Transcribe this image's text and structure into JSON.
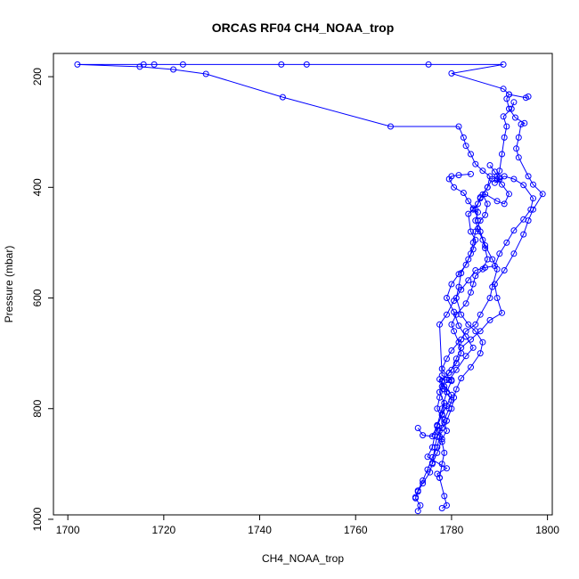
{
  "chart_data": {
    "type": "line",
    "title": "ORCAS RF04 CH4_NOAA_trop",
    "xlabel": "CH4_NOAA_trop",
    "ylabel": "Pressure (mbar)",
    "xlim": [
      1697,
      1801
    ],
    "ylim": [
      158,
      992
    ],
    "y_reversed": true,
    "grid": false,
    "x_ticks": [
      {
        "value": 1700,
        "label": "1700"
      },
      {
        "value": 1720,
        "label": "1720"
      },
      {
        "value": 1740,
        "label": "1740"
      },
      {
        "value": 1760,
        "label": "1760"
      },
      {
        "value": 1780,
        "label": "1780"
      },
      {
        "value": 1800,
        "label": "1800"
      }
    ],
    "y_ticks": [
      {
        "value": 200,
        "label": "200"
      },
      {
        "value": 400,
        "label": "400"
      },
      {
        "value": 600,
        "label": "600"
      },
      {
        "value": 800,
        "label": "800"
      },
      {
        "value": 1000,
        "label": "1000"
      }
    ],
    "series": [
      {
        "color": "#0000ff",
        "marker": "open-circle",
        "points": [
          [
            1778.0,
            980
          ],
          [
            1779.0,
            975
          ],
          [
            1778.5,
            958
          ],
          [
            1777.5,
            925
          ],
          [
            1777.0,
            918
          ],
          [
            1779.0,
            908
          ],
          [
            1775.0,
            887
          ],
          [
            1776.0,
            870
          ],
          [
            1776.5,
            848
          ],
          [
            1777.0,
            830
          ],
          [
            1778.0,
            800
          ],
          [
            1779.0,
            770
          ],
          [
            1780.0,
            750
          ],
          [
            1778.0,
            728
          ],
          [
            1779.0,
            710
          ],
          [
            1780.0,
            695
          ],
          [
            1782.0,
            675
          ],
          [
            1783.0,
            660
          ],
          [
            1785.0,
            648
          ],
          [
            1786.0,
            630
          ],
          [
            1788.0,
            600
          ],
          [
            1788.5,
            580
          ],
          [
            1789.5,
            548
          ],
          [
            1788.5,
            530
          ],
          [
            1787.0,
            505
          ],
          [
            1786.0,
            480
          ],
          [
            1785.5,
            460
          ],
          [
            1785.0,
            440
          ],
          [
            1786.0,
            420
          ],
          [
            1787.5,
            400
          ],
          [
            1788.0,
            380
          ],
          [
            1786.5,
            370
          ],
          [
            1785.0,
            358
          ],
          [
            1784.0,
            340
          ],
          [
            1783.0,
            325
          ],
          [
            1782.5,
            310
          ],
          [
            1781.5,
            290
          ],
          [
            1767.3,
            290
          ],
          [
            1744.8,
            237
          ],
          [
            1728.8,
            195
          ],
          [
            1722.0,
            187
          ],
          [
            1715.0,
            182
          ],
          [
            1702.0,
            178
          ],
          [
            1715.8,
            178
          ],
          [
            1718.0,
            178
          ],
          [
            1724.0,
            178
          ],
          [
            1744.5,
            178
          ],
          [
            1749.8,
            178
          ],
          [
            1775.2,
            178
          ],
          [
            1790.8,
            178
          ],
          [
            1780.0,
            194
          ],
          [
            1790.8,
            222
          ],
          [
            1792.0,
            232
          ],
          [
            1795.5,
            238
          ],
          [
            1796.0,
            236
          ]
        ]
      },
      {
        "color": "#0000ff",
        "marker": "open-circle",
        "points": [
          [
            1773.0,
            985
          ],
          [
            1773.5,
            975
          ],
          [
            1772.5,
            962
          ],
          [
            1773.0,
            948
          ],
          [
            1774.0,
            930
          ],
          [
            1775.0,
            910
          ],
          [
            1776.0,
            888
          ],
          [
            1777.0,
            870
          ],
          [
            1777.5,
            850
          ],
          [
            1777.0,
            832
          ],
          [
            1778.0,
            810
          ],
          [
            1778.5,
            790
          ],
          [
            1777.5,
            770
          ],
          [
            1778.0,
            750
          ],
          [
            1780.0,
            730
          ],
          [
            1781.0,
            710
          ],
          [
            1782.0,
            690
          ],
          [
            1784.0,
            675
          ],
          [
            1786.0,
            660
          ],
          [
            1788.0,
            640
          ],
          [
            1790.5,
            627
          ],
          [
            1789.5,
            600
          ],
          [
            1789.0,
            575
          ],
          [
            1791.0,
            550
          ],
          [
            1793.0,
            520
          ],
          [
            1795.0,
            485
          ],
          [
            1796.0,
            460
          ],
          [
            1797.0,
            440
          ],
          [
            1799.0,
            412
          ],
          [
            1797.0,
            395
          ],
          [
            1796.0,
            380
          ],
          [
            1794.0,
            346
          ],
          [
            1793.5,
            330
          ],
          [
            1794.0,
            310
          ],
          [
            1794.5,
            286
          ],
          [
            1795.2,
            284
          ],
          [
            1793.3,
            274
          ],
          [
            1792.0,
            258
          ],
          [
            1791.5,
            240
          ],
          [
            1792.0,
            232
          ]
        ]
      },
      {
        "color": "#0000ff",
        "marker": "open-circle",
        "points": [
          [
            1772.5,
            960
          ],
          [
            1773.0,
            950
          ],
          [
            1774.0,
            935
          ],
          [
            1775.5,
            915
          ],
          [
            1776.0,
            898
          ],
          [
            1777.0,
            880
          ],
          [
            1778.0,
            855
          ],
          [
            1779.0,
            840
          ],
          [
            1778.5,
            825
          ],
          [
            1777.0,
            800
          ],
          [
            1777.5,
            780
          ],
          [
            1778.0,
            760
          ],
          [
            1779.5,
            748
          ],
          [
            1781.0,
            730
          ],
          [
            1783.0,
            705
          ],
          [
            1784.5,
            690
          ],
          [
            1783.0,
            670
          ],
          [
            1781.5,
            650
          ],
          [
            1780.5,
            625
          ],
          [
            1779.0,
            600
          ],
          [
            1780.0,
            575
          ],
          [
            1781.5,
            557
          ],
          [
            1783.0,
            540
          ],
          [
            1784.0,
            520
          ],
          [
            1784.5,
            500
          ],
          [
            1785.0,
            480
          ],
          [
            1786.0,
            460
          ],
          [
            1787.0,
            450
          ],
          [
            1787.5,
            430
          ],
          [
            1786.5,
            413
          ],
          [
            1787.5,
            400
          ],
          [
            1788.5,
            385
          ],
          [
            1789.5,
            380
          ],
          [
            1790.0,
            370
          ],
          [
            1790.5,
            340
          ],
          [
            1791.0,
            310
          ],
          [
            1791.5,
            290
          ],
          [
            1790.8,
            272
          ],
          [
            1792.5,
            258
          ],
          [
            1793.0,
            246
          ]
        ]
      },
      {
        "color": "#0000ff",
        "marker": "open-circle",
        "points": [
          [
            1773.0,
            835
          ],
          [
            1774.0,
            848
          ],
          [
            1776.0,
            850
          ],
          [
            1777.0,
            830
          ],
          [
            1778.0,
            812
          ],
          [
            1779.0,
            795
          ],
          [
            1780.0,
            775
          ],
          [
            1778.5,
            760
          ],
          [
            1777.5,
            747
          ],
          [
            1779.0,
            748
          ],
          [
            1780.0,
            748
          ],
          [
            1778.0,
            740
          ],
          [
            1777.5,
            648
          ],
          [
            1779.0,
            630
          ],
          [
            1780.5,
            605
          ],
          [
            1782.0,
            585
          ],
          [
            1783.5,
            568
          ],
          [
            1785.0,
            550
          ],
          [
            1787.0,
            545
          ],
          [
            1789.0,
            542
          ],
          [
            1790.0,
            520
          ],
          [
            1791.5,
            500
          ],
          [
            1793.0,
            478
          ],
          [
            1795.0,
            458
          ],
          [
            1796.5,
            440
          ],
          [
            1797.0,
            420
          ],
          [
            1795.0,
            396
          ],
          [
            1793.0,
            385
          ],
          [
            1791.0,
            380
          ],
          [
            1789.0,
            392
          ],
          [
            1790.0,
            385
          ],
          [
            1789.0,
            372
          ],
          [
            1788.0,
            360
          ]
        ]
      },
      {
        "color": "#0000ff",
        "marker": "open-circle",
        "points": [
          [
            1776.0,
            900
          ],
          [
            1776.5,
            870
          ],
          [
            1777.0,
            851
          ],
          [
            1778.0,
            835
          ],
          [
            1779.0,
            822
          ],
          [
            1780.0,
            800
          ],
          [
            1780.5,
            780
          ],
          [
            1781.0,
            765
          ],
          [
            1782.0,
            745
          ],
          [
            1784.0,
            725
          ],
          [
            1786.0,
            700
          ],
          [
            1786.5,
            680
          ],
          [
            1785.0,
            660
          ],
          [
            1783.5,
            648
          ],
          [
            1782.0,
            630
          ],
          [
            1781.0,
            600
          ],
          [
            1781.5,
            580
          ],
          [
            1782.0,
            555
          ],
          [
            1783.5,
            530
          ],
          [
            1784.5,
            512
          ],
          [
            1785.0,
            495
          ],
          [
            1784.0,
            480
          ],
          [
            1783.5,
            448
          ],
          [
            1784.5,
            440
          ],
          [
            1785.5,
            430
          ],
          [
            1786.0,
            418
          ],
          [
            1787.0,
            412
          ],
          [
            1789.5,
            425
          ],
          [
            1791.0,
            430
          ],
          [
            1792.0,
            412
          ],
          [
            1790.5,
            395
          ],
          [
            1789.5,
            386
          ],
          [
            1790.0,
            382
          ]
        ]
      },
      {
        "color": "#0000ff",
        "marker": "open-circle",
        "points": [
          [
            1777.5,
            925
          ],
          [
            1778.0,
            900
          ],
          [
            1778.5,
            880
          ],
          [
            1778.0,
            860
          ],
          [
            1777.5,
            840
          ],
          [
            1778.5,
            820
          ],
          [
            1779.5,
            800
          ],
          [
            1780.0,
            785
          ],
          [
            1778.5,
            765
          ],
          [
            1778.0,
            750
          ],
          [
            1779.5,
            735
          ],
          [
            1781.0,
            718
          ],
          [
            1782.0,
            700
          ],
          [
            1781.5,
            680
          ],
          [
            1780.5,
            660
          ],
          [
            1780.0,
            648
          ],
          [
            1781.0,
            630
          ],
          [
            1783.0,
            610
          ],
          [
            1784.0,
            590
          ],
          [
            1784.5,
            575
          ],
          [
            1785.0,
            560
          ],
          [
            1786.5,
            548
          ],
          [
            1787.5,
            530
          ],
          [
            1787.0,
            510
          ],
          [
            1786.5,
            495
          ],
          [
            1785.5,
            475
          ],
          [
            1785.0,
            460
          ],
          [
            1785.5,
            445
          ],
          [
            1784.5,
            438
          ],
          [
            1783.5,
            425
          ],
          [
            1782.5,
            410
          ],
          [
            1780.5,
            400
          ],
          [
            1779.5,
            385
          ],
          [
            1780.0,
            380
          ],
          [
            1781.5,
            378
          ],
          [
            1784.0,
            376
          ]
        ]
      }
    ]
  }
}
